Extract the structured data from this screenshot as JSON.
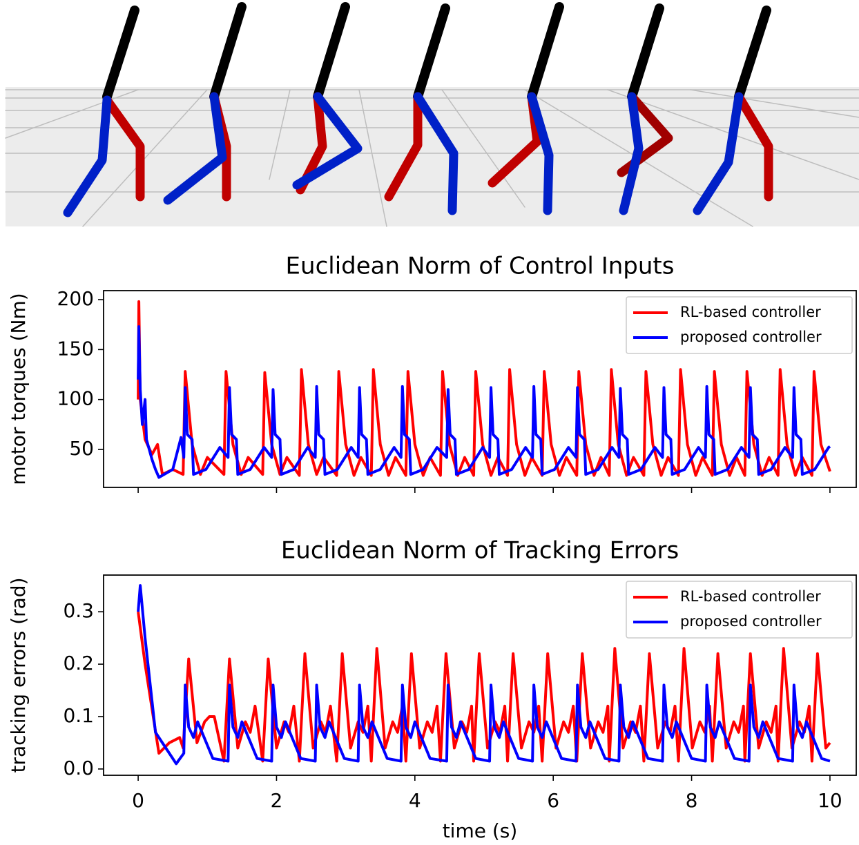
{
  "chart_data": [
    {
      "type": "line",
      "title": "Euclidean Norm of Control Inputs",
      "ylabel": "motor torques (Nm)",
      "xlim": [
        -0.5,
        10.38
      ],
      "ylim": [
        12,
        209
      ],
      "yticks": [
        50,
        100,
        150,
        200
      ],
      "xticks": [
        0,
        2,
        4,
        6,
        8,
        10
      ],
      "xtick_labels": false,
      "legend": "upper right",
      "series": [
        {
          "name": "RL-based controller",
          "color": "#ff0000",
          "x": [
            0,
            0.01,
            0.03,
            0.1,
            0.2,
            0.28,
            0.35,
            0.5,
            0.65,
            0.68,
            0.78,
            0.9,
            1.0,
            1.24,
            1.27,
            1.37,
            1.49,
            1.59,
            1.8,
            1.83,
            1.93,
            2.05,
            2.15,
            2.33,
            2.36,
            2.46,
            2.58,
            2.68,
            2.87,
            2.9,
            3.0,
            3.12,
            3.22,
            3.37,
            3.4,
            3.5,
            3.62,
            3.72,
            3.87,
            3.9,
            4.0,
            4.12,
            4.22,
            4.37,
            4.4,
            4.5,
            4.62,
            4.72,
            4.85,
            4.88,
            4.98,
            5.1,
            5.2,
            5.34,
            5.37,
            5.47,
            5.59,
            5.69,
            5.84,
            5.87,
            5.97,
            6.09,
            6.19,
            6.34,
            6.37,
            6.47,
            6.59,
            6.69,
            6.81,
            6.84,
            6.94,
            7.06,
            7.16,
            7.31,
            7.34,
            7.44,
            7.56,
            7.66,
            7.81,
            7.84,
            7.94,
            8.06,
            8.16,
            8.3,
            8.33,
            8.43,
            8.55,
            8.65,
            8.77,
            8.8,
            8.9,
            9.02,
            9.12,
            9.25,
            9.28,
            9.38,
            9.5,
            9.6,
            9.74,
            9.77,
            9.87,
            10.0
          ],
          "values": [
            100,
            198,
            100,
            60,
            45,
            55,
            25,
            30,
            25,
            128,
            55,
            25,
            42,
            25,
            128,
            55,
            25,
            42,
            25,
            127,
            55,
            25,
            42,
            24,
            130,
            55,
            25,
            42,
            24,
            128,
            55,
            24,
            42,
            24,
            130,
            55,
            24,
            42,
            24,
            128,
            55,
            24,
            42,
            24,
            128,
            55,
            24,
            42,
            24,
            128,
            55,
            24,
            42,
            24,
            130,
            55,
            24,
            42,
            24,
            128,
            55,
            24,
            42,
            24,
            128,
            55,
            24,
            42,
            24,
            130,
            55,
            24,
            42,
            24,
            128,
            55,
            24,
            42,
            24,
            130,
            55,
            24,
            42,
            24,
            128,
            55,
            24,
            42,
            24,
            128,
            55,
            24,
            42,
            24,
            130,
            55,
            24,
            42,
            24,
            128,
            55,
            28
          ]
        },
        {
          "name": "proposed controller",
          "color": "#0000ff",
          "x": [
            0,
            0.01,
            0.03,
            0.06,
            0.1,
            0.12,
            0.2,
            0.25,
            0.3,
            0.5,
            0.62,
            0.66,
            0.68,
            0.71,
            0.78,
            0.8,
            0.98,
            1.18,
            1.3,
            1.32,
            1.35,
            1.42,
            1.44,
            1.62,
            1.82,
            1.93,
            1.95,
            1.98,
            2.05,
            2.07,
            2.25,
            2.45,
            2.56,
            2.58,
            2.61,
            2.68,
            2.7,
            2.88,
            3.08,
            3.18,
            3.2,
            3.23,
            3.3,
            3.32,
            3.5,
            3.7,
            3.8,
            3.82,
            3.85,
            3.92,
            3.94,
            4.12,
            4.32,
            4.46,
            4.48,
            4.51,
            4.58,
            4.6,
            4.78,
            4.98,
            5.08,
            5.1,
            5.13,
            5.2,
            5.22,
            5.4,
            5.6,
            5.7,
            5.72,
            5.75,
            5.82,
            5.84,
            6.02,
            6.22,
            6.33,
            6.35,
            6.38,
            6.45,
            6.47,
            6.65,
            6.85,
            6.95,
            6.97,
            7.0,
            7.07,
            7.09,
            7.27,
            7.47,
            7.58,
            7.6,
            7.63,
            7.7,
            7.72,
            7.9,
            8.1,
            8.2,
            8.22,
            8.25,
            8.32,
            8.34,
            8.52,
            8.72,
            8.83,
            8.85,
            8.88,
            8.95,
            8.97,
            9.15,
            9.35,
            9.46,
            9.48,
            9.51,
            9.58,
            9.6,
            9.78,
            9.98,
            10.0
          ],
          "values": [
            120,
            173,
            110,
            75,
            100,
            60,
            40,
            30,
            22,
            30,
            62,
            42,
            112,
            65,
            60,
            25,
            30,
            52,
            42,
            112,
            65,
            60,
            25,
            30,
            52,
            42,
            110,
            65,
            60,
            25,
            30,
            52,
            42,
            113,
            65,
            60,
            25,
            30,
            52,
            42,
            112,
            65,
            60,
            25,
            30,
            52,
            42,
            113,
            65,
            60,
            25,
            30,
            52,
            42,
            110,
            65,
            60,
            25,
            30,
            52,
            42,
            112,
            65,
            60,
            25,
            30,
            52,
            42,
            113,
            65,
            60,
            25,
            30,
            52,
            42,
            112,
            65,
            60,
            25,
            30,
            52,
            42,
            111,
            65,
            60,
            25,
            30,
            52,
            42,
            112,
            65,
            60,
            25,
            30,
            52,
            42,
            113,
            65,
            60,
            25,
            30,
            52,
            42,
            112,
            65,
            60,
            25,
            30,
            52,
            42,
            112,
            65,
            60,
            25,
            30,
            52,
            53
          ]
        }
      ]
    },
    {
      "type": "line",
      "title": "Euclidean Norm of Tracking Errors",
      "ylabel": "tracking errors (rad)",
      "xlabel": "time (s)",
      "xlim": [
        -0.5,
        10.38
      ],
      "ylim": [
        -0.012,
        0.37
      ],
      "yticks": [
        {
          "value": 0,
          "label": "0.0"
        },
        0.1,
        0.2,
        0.3
      ],
      "xticks": [
        0,
        2,
        4,
        6,
        8,
        10
      ],
      "xtick_labels": true,
      "legend": "upper right",
      "series": [
        {
          "name": "RL-based controller",
          "color": "#ff0000",
          "x": [
            0,
            0.1,
            0.3,
            0.45,
            0.6,
            0.65,
            0.73,
            0.85,
            0.96,
            1.03,
            1.1,
            1.24,
            1.32,
            1.44,
            1.55,
            1.62,
            1.69,
            1.8,
            1.88,
            2.0,
            2.11,
            2.18,
            2.25,
            2.33,
            2.41,
            2.53,
            2.64,
            2.71,
            2.78,
            2.87,
            2.95,
            3.07,
            3.18,
            3.25,
            3.32,
            3.37,
            3.45,
            3.57,
            3.68,
            3.75,
            3.82,
            3.87,
            3.95,
            4.07,
            4.18,
            4.25,
            4.32,
            4.37,
            4.45,
            4.57,
            4.68,
            4.75,
            4.82,
            4.85,
            4.93,
            5.05,
            5.16,
            5.23,
            5.3,
            5.34,
            5.42,
            5.54,
            5.65,
            5.72,
            5.79,
            5.84,
            5.92,
            6.04,
            6.15,
            6.22,
            6.29,
            6.34,
            6.42,
            6.54,
            6.65,
            6.72,
            6.79,
            6.81,
            6.89,
            7.01,
            7.12,
            7.19,
            7.26,
            7.31,
            7.39,
            7.51,
            7.62,
            7.69,
            7.76,
            7.81,
            7.89,
            8.01,
            8.12,
            8.19,
            8.26,
            8.3,
            8.38,
            8.5,
            8.61,
            8.68,
            8.75,
            8.77,
            8.85,
            8.97,
            9.08,
            9.15,
            9.22,
            9.25,
            9.33,
            9.45,
            9.56,
            9.63,
            9.7,
            9.74,
            9.82,
            9.94,
            10.0
          ],
          "values": [
            0.3,
            0.2,
            0.03,
            0.05,
            0.06,
            0.04,
            0.21,
            0.05,
            0.09,
            0.1,
            0.1,
            0.015,
            0.21,
            0.04,
            0.09,
            0.07,
            0.12,
            0.015,
            0.21,
            0.04,
            0.09,
            0.07,
            0.12,
            0.015,
            0.22,
            0.04,
            0.09,
            0.07,
            0.12,
            0.015,
            0.22,
            0.04,
            0.09,
            0.07,
            0.12,
            0.015,
            0.23,
            0.04,
            0.09,
            0.07,
            0.12,
            0.015,
            0.22,
            0.04,
            0.09,
            0.07,
            0.12,
            0.015,
            0.22,
            0.04,
            0.09,
            0.07,
            0.12,
            0.015,
            0.22,
            0.04,
            0.09,
            0.07,
            0.12,
            0.015,
            0.22,
            0.04,
            0.09,
            0.07,
            0.12,
            0.015,
            0.22,
            0.04,
            0.09,
            0.07,
            0.12,
            0.015,
            0.22,
            0.04,
            0.09,
            0.07,
            0.12,
            0.015,
            0.23,
            0.04,
            0.09,
            0.07,
            0.12,
            0.015,
            0.22,
            0.04,
            0.09,
            0.07,
            0.12,
            0.015,
            0.23,
            0.04,
            0.09,
            0.07,
            0.12,
            0.015,
            0.22,
            0.04,
            0.09,
            0.07,
            0.12,
            0.015,
            0.22,
            0.04,
            0.09,
            0.07,
            0.12,
            0.015,
            0.23,
            0.04,
            0.09,
            0.07,
            0.12,
            0.015,
            0.22,
            0.04,
            0.05
          ]
        },
        {
          "name": "proposed controller",
          "color": "#0000ff",
          "x": [
            0,
            0.03,
            0.1,
            0.25,
            0.4,
            0.55,
            0.66,
            0.68,
            0.73,
            0.8,
            0.86,
            1.08,
            1.3,
            1.32,
            1.37,
            1.44,
            1.5,
            1.72,
            1.93,
            1.95,
            2.0,
            2.07,
            2.13,
            2.35,
            2.56,
            2.58,
            2.63,
            2.7,
            2.76,
            2.98,
            3.18,
            3.2,
            3.25,
            3.32,
            3.38,
            3.6,
            3.8,
            3.82,
            3.87,
            3.94,
            4.0,
            4.22,
            4.46,
            4.48,
            4.53,
            4.6,
            4.66,
            4.88,
            5.08,
            5.1,
            5.15,
            5.22,
            5.28,
            5.5,
            5.7,
            5.72,
            5.77,
            5.84,
            5.9,
            6.12,
            6.33,
            6.35,
            6.4,
            6.47,
            6.53,
            6.75,
            6.95,
            6.97,
            7.02,
            7.09,
            7.15,
            7.37,
            7.58,
            7.6,
            7.65,
            7.72,
            7.78,
            8.0,
            8.2,
            8.22,
            8.27,
            8.34,
            8.4,
            8.62,
            8.83,
            8.85,
            8.9,
            8.97,
            9.03,
            9.25,
            9.46,
            9.48,
            9.53,
            9.6,
            9.66,
            9.88,
            10.0
          ],
          "values": [
            0.3,
            0.35,
            0.25,
            0.07,
            0.04,
            0.01,
            0.03,
            0.16,
            0.08,
            0.06,
            0.09,
            0.02,
            0.015,
            0.16,
            0.08,
            0.06,
            0.09,
            0.02,
            0.015,
            0.16,
            0.08,
            0.06,
            0.09,
            0.02,
            0.015,
            0.16,
            0.08,
            0.06,
            0.09,
            0.02,
            0.015,
            0.16,
            0.08,
            0.06,
            0.09,
            0.02,
            0.015,
            0.16,
            0.08,
            0.06,
            0.09,
            0.02,
            0.015,
            0.16,
            0.08,
            0.06,
            0.09,
            0.02,
            0.015,
            0.16,
            0.08,
            0.06,
            0.09,
            0.02,
            0.015,
            0.16,
            0.08,
            0.06,
            0.09,
            0.02,
            0.015,
            0.16,
            0.08,
            0.06,
            0.09,
            0.02,
            0.015,
            0.16,
            0.08,
            0.06,
            0.09,
            0.02,
            0.015,
            0.16,
            0.08,
            0.06,
            0.09,
            0.02,
            0.015,
            0.16,
            0.08,
            0.06,
            0.09,
            0.02,
            0.015,
            0.16,
            0.08,
            0.06,
            0.09,
            0.02,
            0.015,
            0.16,
            0.08,
            0.06,
            0.09,
            0.02,
            0.015
          ]
        }
      ]
    }
  ]
}
